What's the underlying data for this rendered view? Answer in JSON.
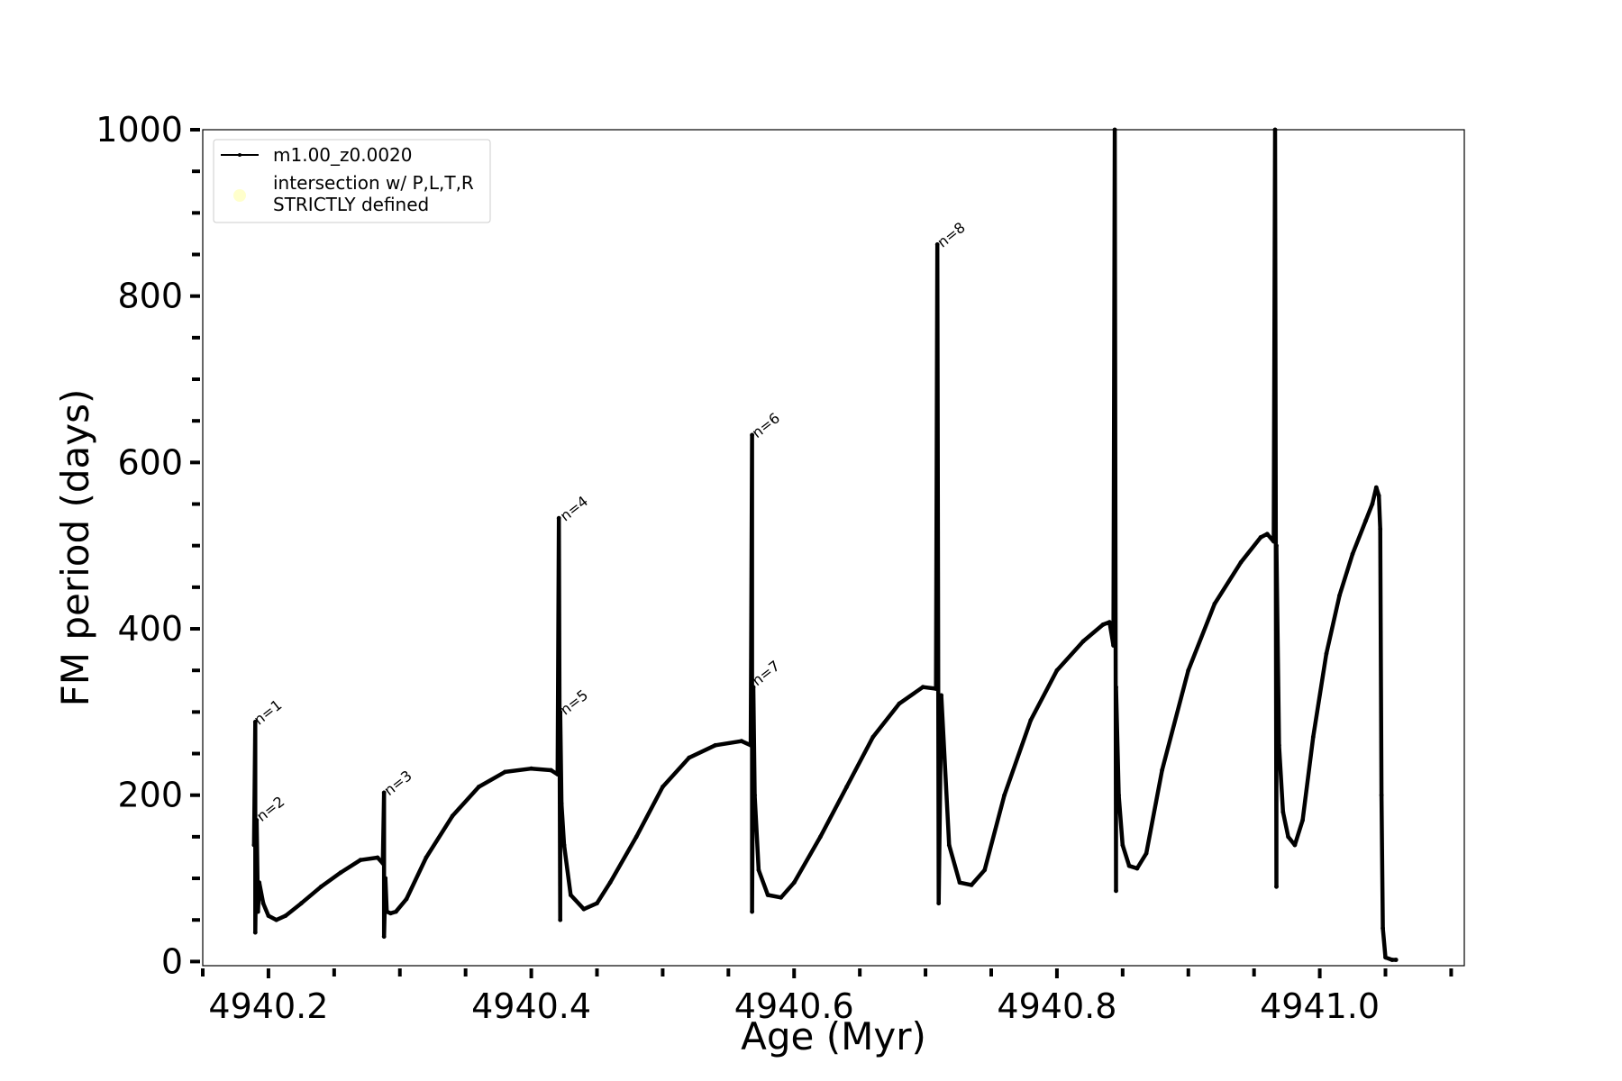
{
  "chart_data": {
    "type": "line",
    "title": "",
    "xlabel": "Age (Myr)",
    "ylabel": "FM period (days)",
    "xlim": [
      4940.15,
      4941.11
    ],
    "ylim": [
      -5,
      1000
    ],
    "x_major_ticks": [
      4940.2,
      4940.4,
      4940.6,
      4940.8,
      4941.0
    ],
    "x_major_tick_labels": [
      "4940.2",
      "4940.4",
      "4940.6",
      "4940.8",
      "4941.0"
    ],
    "x_minor_ticks": [
      4940.15,
      4940.25,
      4940.3,
      4940.35,
      4940.45,
      4940.5,
      4940.55,
      4940.65,
      4940.7,
      4940.75,
      4940.85,
      4940.9,
      4940.95,
      4941.05,
      4941.1
    ],
    "y_major_ticks": [
      0,
      200,
      400,
      600,
      800,
      1000
    ],
    "y_major_tick_labels": [
      "0",
      "200",
      "400",
      "600",
      "800",
      "1000"
    ],
    "y_minor_ticks": [
      50,
      100,
      150,
      250,
      300,
      350,
      450,
      500,
      550,
      650,
      700,
      750,
      850,
      900,
      950
    ],
    "grid": false,
    "legend_position": "top-left",
    "legend": [
      {
        "label": "m1.00_z0.0020",
        "marker": "line",
        "color": "#000000"
      },
      {
        "label_lines": [
          "intersection w/ P,L,T,R",
          "STRICTLY defined"
        ],
        "marker": "circle",
        "color": "#ffffcc"
      }
    ],
    "series": [
      {
        "name": "m1.00_z0.0020",
        "color": "#000000",
        "x": [
          4940.189,
          4940.19,
          4940.19,
          4940.191,
          4940.192,
          4940.193,
          4940.196,
          4940.2,
          4940.206,
          4940.213,
          4940.225,
          4940.24,
          4940.255,
          4940.27,
          4940.283,
          4940.287,
          4940.288,
          4940.288,
          4940.289,
          4940.29,
          4940.293,
          4940.297,
          4940.305,
          4940.32,
          4940.34,
          4940.36,
          4940.38,
          4940.4,
          4940.415,
          4940.42,
          4940.421,
          4940.422,
          4940.422,
          4940.423,
          4940.425,
          4940.43,
          4940.44,
          4940.45,
          4940.46,
          4940.48,
          4940.5,
          4940.52,
          4940.54,
          4940.56,
          4940.567,
          4940.568,
          4940.568,
          4940.569,
          4940.57,
          4940.573,
          4940.58,
          4940.59,
          4940.6,
          4940.62,
          4940.64,
          4940.66,
          4940.68,
          4940.698,
          4940.708,
          4940.709,
          4940.71,
          4940.712,
          4940.718,
          4940.726,
          4940.735,
          4940.745,
          4940.76,
          4940.78,
          4940.8,
          4940.82,
          4940.835,
          4940.84,
          4940.843,
          4940.844,
          4940.845,
          4940.845,
          4940.847,
          4940.85,
          4940.855,
          4940.861,
          4940.868,
          4940.88,
          4940.9,
          4940.92,
          4940.94,
          4940.955,
          4940.96,
          4940.965,
          4940.966,
          4940.967,
          4940.967,
          4940.969,
          4940.972,
          4940.976,
          4940.981,
          4940.987,
          4940.995,
          4941.005,
          4941.015,
          4941.025,
          4941.035,
          4941.04,
          4941.043,
          4941.045,
          4941.046,
          4941.047,
          4941.048,
          4941.05,
          4941.055,
          4941.058
        ],
        "y": [
          140,
          288,
          35,
          170,
          60,
          95,
          70,
          55,
          50,
          55,
          70,
          90,
          107,
          122,
          125,
          118,
          203,
          30,
          100,
          60,
          58,
          60,
          75,
          125,
          175,
          210,
          228,
          232,
          230,
          225,
          533,
          50,
          300,
          190,
          140,
          80,
          63,
          70,
          95,
          150,
          210,
          245,
          260,
          265,
          260,
          633,
          60,
          330,
          200,
          110,
          80,
          77,
          95,
          150,
          210,
          270,
          310,
          330,
          328,
          862,
          70,
          320,
          140,
          95,
          92,
          110,
          200,
          290,
          350,
          385,
          405,
          408,
          380,
          1000,
          85,
          330,
          200,
          140,
          115,
          112,
          130,
          230,
          350,
          430,
          480,
          510,
          514,
          505,
          1000,
          90,
          500,
          260,
          180,
          150,
          140,
          170,
          270,
          370,
          440,
          490,
          530,
          550,
          570,
          560,
          520,
          200,
          40,
          5,
          2,
          2
        ]
      }
    ],
    "annotations": [
      {
        "text": "n=1",
        "x": 4940.19,
        "y": 288
      },
      {
        "text": "n=2",
        "x": 4940.192,
        "y": 172
      },
      {
        "text": "n=3",
        "x": 4940.289,
        "y": 203
      },
      {
        "text": "n=4",
        "x": 4940.423,
        "y": 533
      },
      {
        "text": "n=5",
        "x": 4940.423,
        "y": 300
      },
      {
        "text": "n=6",
        "x": 4940.569,
        "y": 633
      },
      {
        "text": "n=7",
        "x": 4940.569,
        "y": 335
      },
      {
        "text": "n=8",
        "x": 4940.71,
        "y": 862
      }
    ]
  }
}
